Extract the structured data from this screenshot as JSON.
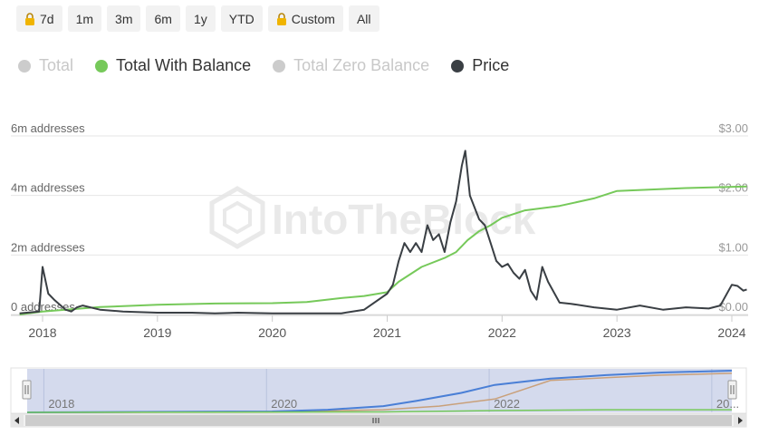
{
  "range_buttons": [
    {
      "label": "7d",
      "locked": true
    },
    {
      "label": "1m",
      "locked": false
    },
    {
      "label": "3m",
      "locked": false
    },
    {
      "label": "6m",
      "locked": false
    },
    {
      "label": "1y",
      "locked": false
    },
    {
      "label": "YTD",
      "locked": false
    },
    {
      "label": "Custom",
      "locked": true
    },
    {
      "label": "All",
      "locked": false
    }
  ],
  "legend": [
    {
      "name": "Total",
      "enabled": false
    },
    {
      "name": "Total With Balance",
      "enabled": true,
      "color": "#76c95a"
    },
    {
      "name": "Total Zero Balance",
      "enabled": false
    },
    {
      "name": "Price",
      "enabled": true,
      "color": "#3a3f44"
    }
  ],
  "watermark": "IntoTheBlock",
  "colors": {
    "balance": "#76c95a",
    "price": "#3a3f44",
    "grid": "#e6e6e6",
    "axis_text": "#666666",
    "nav_fill": "#ccd4ea",
    "nav_total": "#4a7fd6",
    "nav_zero": "#c9a07a"
  },
  "chart_data": {
    "type": "line",
    "x_ticks": [
      "2018",
      "2019",
      "2020",
      "2021",
      "2022",
      "2023",
      "2024"
    ],
    "y_left_ticks": [
      "0 addresses",
      "2m addresses",
      "4m addresses",
      "6m addresses"
    ],
    "y_left_range": [
      0,
      6000000
    ],
    "y_right_ticks": [
      "$0.00",
      "$1.00",
      "$2.00",
      "$3.00"
    ],
    "y_right_range": [
      0,
      3
    ],
    "x_range": [
      2017.8,
      2024.13
    ],
    "series": [
      {
        "name": "Total With Balance",
        "axis": "left",
        "x": [
          2017.8,
          2018.0,
          2018.5,
          2019.0,
          2019.5,
          2020.0,
          2020.3,
          2020.6,
          2020.8,
          2021.0,
          2021.1,
          2021.3,
          2021.5,
          2021.6,
          2021.7,
          2021.8,
          2021.9,
          2022.0,
          2022.2,
          2022.5,
          2022.8,
          2023.0,
          2023.3,
          2023.6,
          2023.9,
          2024.13
        ],
        "y": [
          0,
          100000,
          250000,
          330000,
          370000,
          380000,
          420000,
          550000,
          620000,
          750000,
          1100000,
          1600000,
          1900000,
          2100000,
          2500000,
          2800000,
          3000000,
          3250000,
          3500000,
          3650000,
          3900000,
          4150000,
          4200000,
          4250000,
          4280000,
          4300000
        ]
      },
      {
        "name": "Price",
        "axis": "right",
        "x": [
          2017.8,
          2017.97,
          2018.0,
          2018.05,
          2018.1,
          2018.2,
          2018.25,
          2018.3,
          2018.35,
          2018.5,
          2018.7,
          2019.0,
          2019.3,
          2019.5,
          2019.7,
          2020.0,
          2020.2,
          2020.4,
          2020.6,
          2020.8,
          2021.0,
          2021.05,
          2021.1,
          2021.15,
          2021.2,
          2021.25,
          2021.3,
          2021.35,
          2021.4,
          2021.45,
          2021.5,
          2021.55,
          2021.6,
          2021.65,
          2021.68,
          2021.72,
          2021.8,
          2021.85,
          2021.9,
          2021.95,
          2022.0,
          2022.05,
          2022.1,
          2022.15,
          2022.2,
          2022.25,
          2022.3,
          2022.35,
          2022.4,
          2022.5,
          2022.6,
          2022.8,
          2023.0,
          2023.2,
          2023.4,
          2023.6,
          2023.8,
          2023.9,
          2024.0,
          2024.05,
          2024.1,
          2024.13
        ],
        "y": [
          0.02,
          0.05,
          0.8,
          0.35,
          0.25,
          0.08,
          0.05,
          0.12,
          0.15,
          0.08,
          0.05,
          0.03,
          0.03,
          0.02,
          0.03,
          0.02,
          0.02,
          0.02,
          0.02,
          0.08,
          0.35,
          0.5,
          0.9,
          1.2,
          1.05,
          1.2,
          1.05,
          1.5,
          1.25,
          1.35,
          1.05,
          1.55,
          1.9,
          2.5,
          2.75,
          2.0,
          1.6,
          1.5,
          1.2,
          0.9,
          0.8,
          0.85,
          0.7,
          0.6,
          0.75,
          0.4,
          0.25,
          0.8,
          0.55,
          0.2,
          0.18,
          0.12,
          0.08,
          0.15,
          0.08,
          0.12,
          0.1,
          0.15,
          0.5,
          0.48,
          0.4,
          0.42
        ]
      }
    ],
    "navigator": {
      "x_labels": [
        "2018",
        "2020",
        "2022",
        "20..."
      ],
      "x_range": [
        2017.8,
        2024.13
      ],
      "total_series": {
        "x": [
          2017.8,
          2020.0,
          2020.5,
          2021.0,
          2021.3,
          2021.7,
          2022.0,
          2022.5,
          2023.0,
          2023.5,
          2024.13
        ],
        "y": [
          0,
          100000,
          300000,
          700000,
          1300000,
          2200000,
          3100000,
          3800000,
          4200000,
          4500000,
          4700000
        ]
      },
      "zero_series": {
        "x": [
          2017.8,
          2020.0,
          2021.0,
          2021.5,
          2022.0,
          2022.5,
          2023.0,
          2023.5,
          2024.13
        ],
        "y": [
          0,
          50000,
          300000,
          700000,
          1500000,
          3600000,
          3900000,
          4200000,
          4400000
        ]
      },
      "balance_series": {
        "x": [
          2017.8,
          2021.0,
          2022.0,
          2023.0,
          2024.13
        ],
        "y": [
          0,
          50000,
          200000,
          300000,
          300000
        ]
      }
    }
  }
}
